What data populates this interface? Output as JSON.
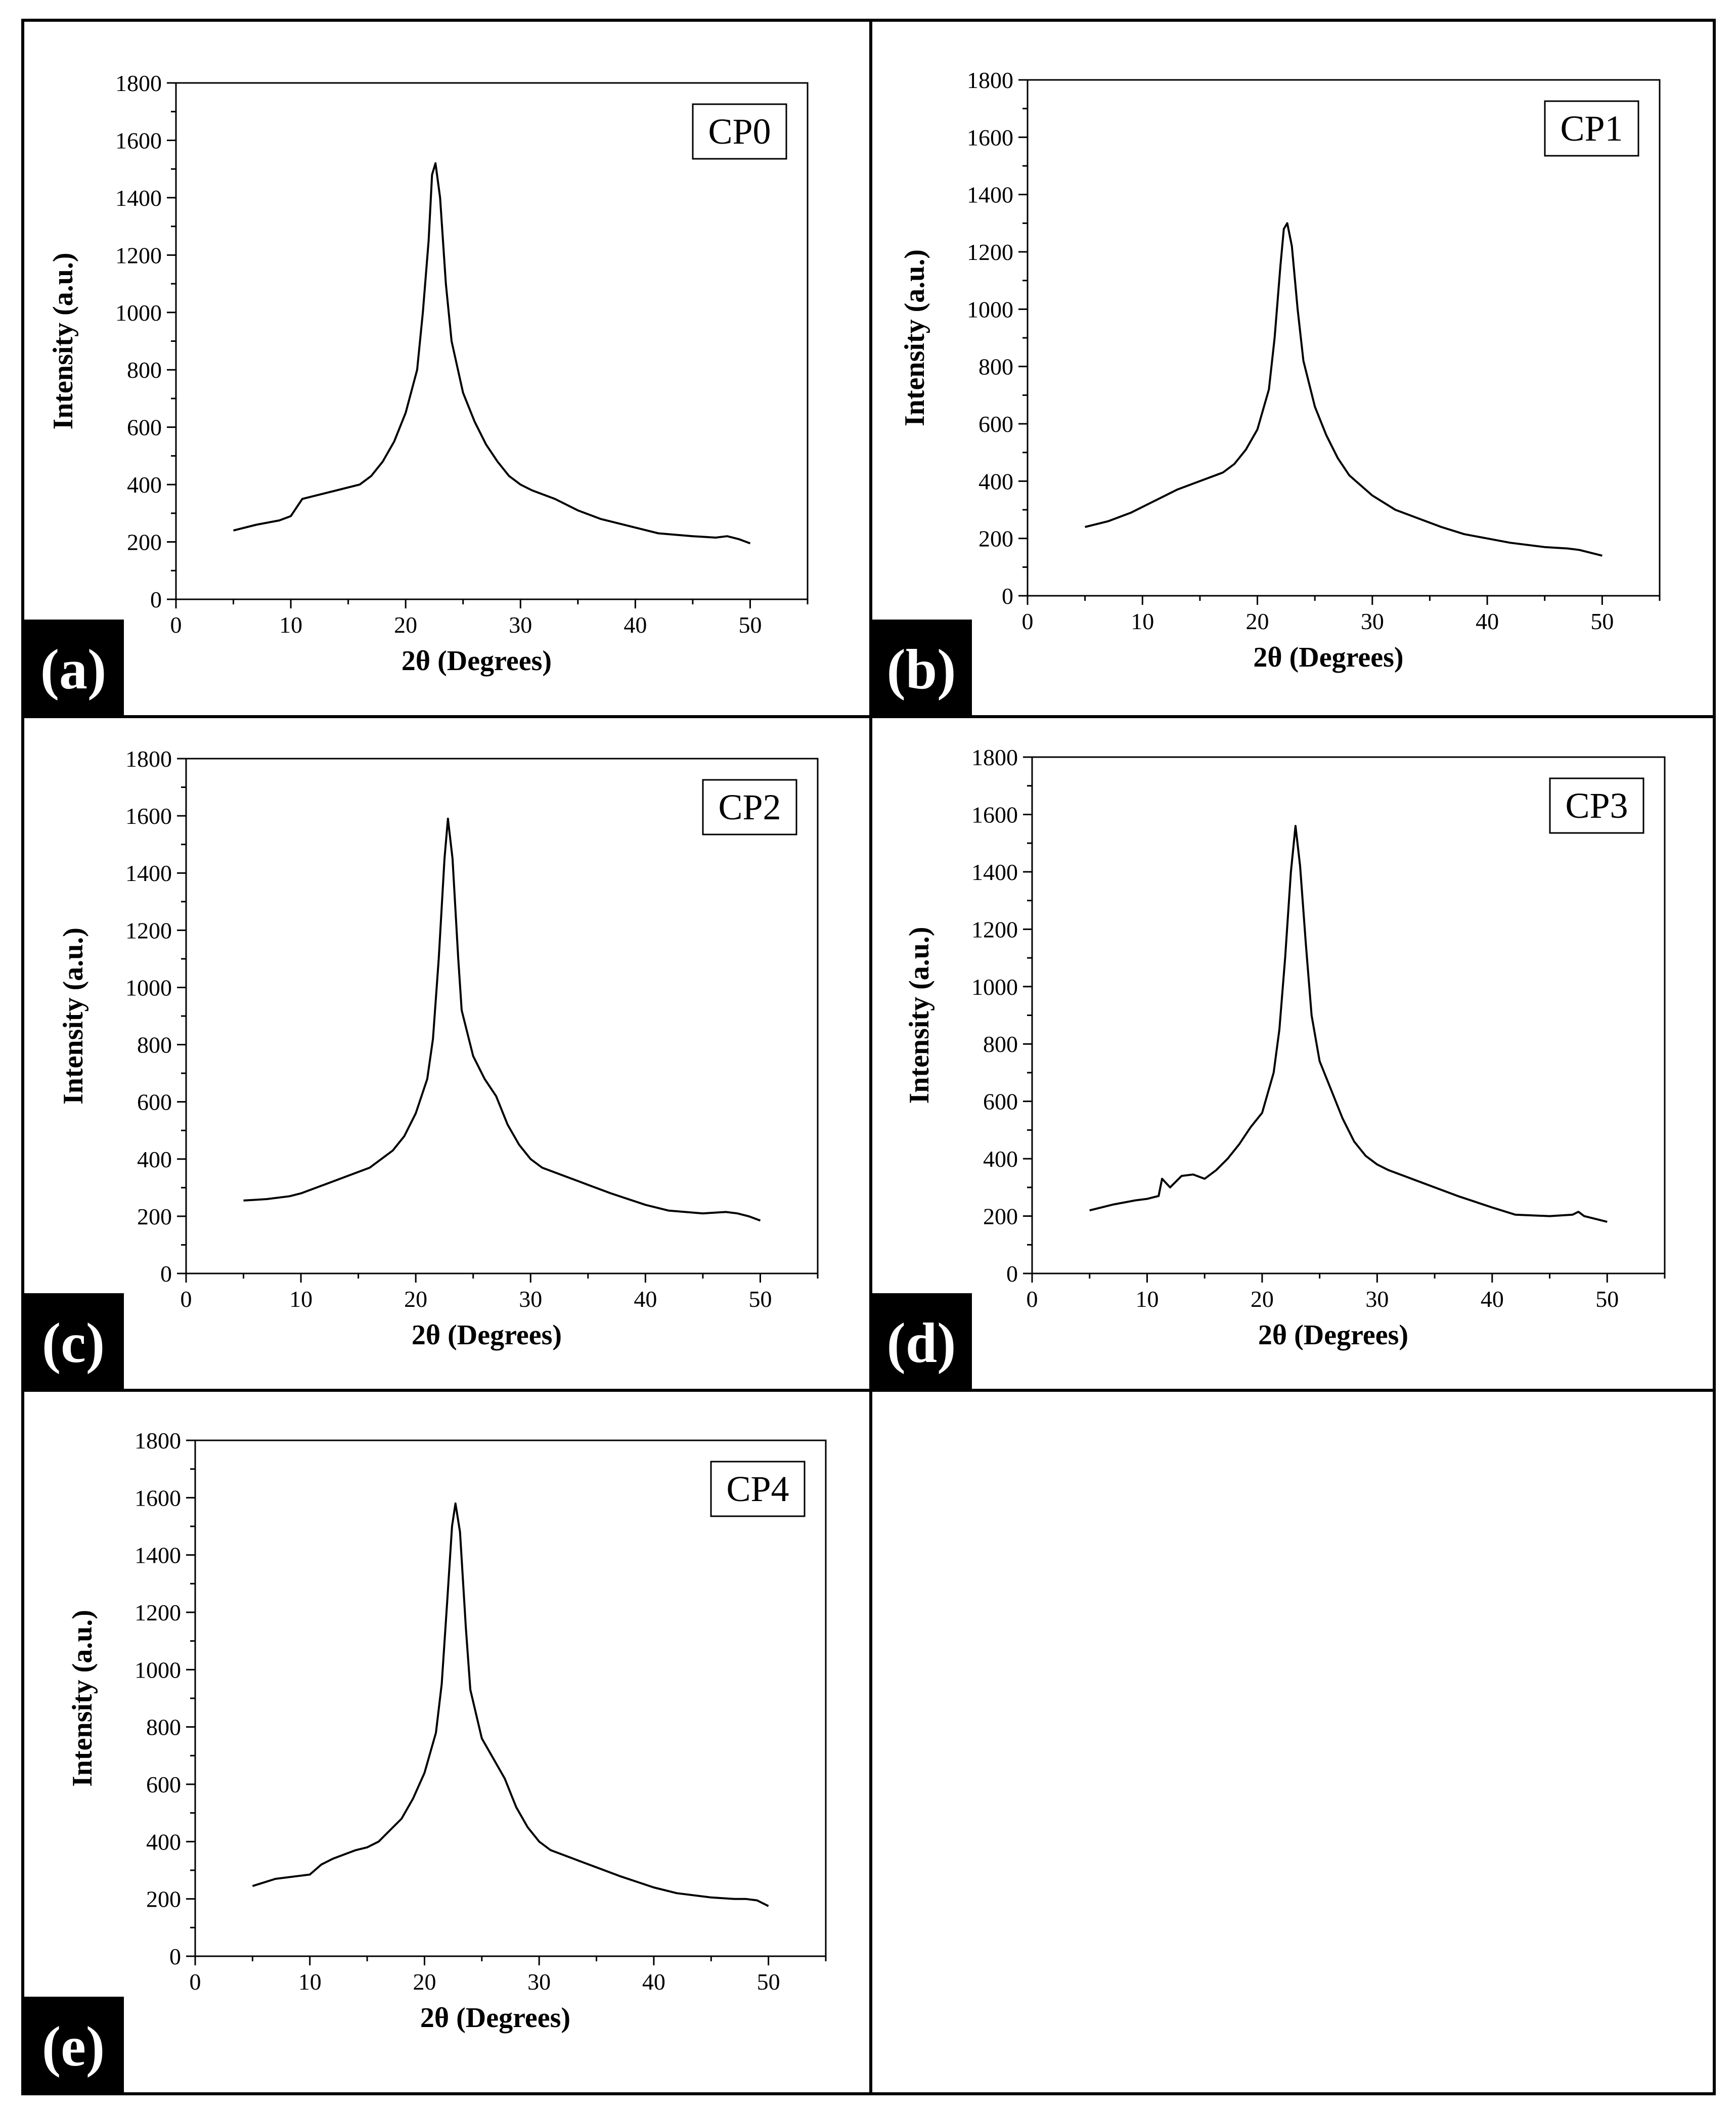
{
  "figure": {
    "panels": [
      {
        "letter": "(a)",
        "sample": "CP0"
      },
      {
        "letter": "(b)",
        "sample": "CP1"
      },
      {
        "letter": "(c)",
        "sample": "CP2"
      },
      {
        "letter": "(d)",
        "sample": "CP3"
      },
      {
        "letter": "(e)",
        "sample": "CP4"
      }
    ]
  },
  "chart_data": [
    {
      "type": "line",
      "title": "CP0",
      "xlabel": "2θ (Degrees)",
      "ylabel": "Intensity (a.u.)",
      "xlim": [
        0,
        55
      ],
      "ylim": [
        0,
        1800
      ],
      "xticks": [
        0,
        10,
        20,
        30,
        40,
        50
      ],
      "yticks": [
        0,
        200,
        400,
        600,
        800,
        1000,
        1200,
        1400,
        1600,
        1800
      ],
      "grid": false,
      "series": [
        {
          "name": "CP0",
          "x": [
            5,
            7,
            9,
            10,
            11,
            12,
            14,
            16,
            17,
            18,
            19,
            20,
            21,
            21.5,
            22,
            22.3,
            22.6,
            23,
            23.5,
            24,
            25,
            26,
            27,
            28,
            29,
            30,
            31,
            33,
            35,
            37,
            40,
            42,
            45,
            47,
            48,
            49,
            50
          ],
          "y": [
            240,
            260,
            275,
            290,
            350,
            360,
            380,
            400,
            430,
            480,
            550,
            650,
            800,
            1000,
            1250,
            1480,
            1520,
            1400,
            1100,
            900,
            720,
            620,
            540,
            480,
            430,
            400,
            380,
            350,
            310,
            280,
            250,
            230,
            220,
            215,
            220,
            210,
            195
          ]
        }
      ]
    },
    {
      "type": "line",
      "title": "CP1",
      "xlabel": "2θ (Degrees)",
      "ylabel": "Intensity (a.u.)",
      "xlim": [
        0,
        55
      ],
      "ylim": [
        0,
        1800
      ],
      "xticks": [
        0,
        10,
        20,
        30,
        40,
        50
      ],
      "yticks": [
        0,
        200,
        400,
        600,
        800,
        1000,
        1200,
        1400,
        1600,
        1800
      ],
      "grid": false,
      "series": [
        {
          "name": "CP1",
          "x": [
            5,
            7,
            9,
            11,
            13,
            15,
            17,
            18,
            19,
            20,
            21,
            21.5,
            22,
            22.3,
            22.6,
            23,
            23.5,
            24,
            25,
            26,
            27,
            28,
            30,
            32,
            34,
            36,
            38,
            40,
            42,
            45,
            47,
            48,
            50
          ],
          "y": [
            240,
            260,
            290,
            330,
            370,
            400,
            430,
            460,
            510,
            580,
            720,
            900,
            1150,
            1280,
            1300,
            1220,
            1000,
            820,
            660,
            560,
            480,
            420,
            350,
            300,
            270,
            240,
            215,
            200,
            185,
            170,
            165,
            160,
            140
          ]
        }
      ]
    },
    {
      "type": "line",
      "title": "CP2",
      "xlabel": "2θ (Degrees)",
      "ylabel": "Intensity (a.u.)",
      "xlim": [
        0,
        55
      ],
      "ylim": [
        0,
        1800
      ],
      "xticks": [
        0,
        10,
        20,
        30,
        40,
        50
      ],
      "yticks": [
        0,
        200,
        400,
        600,
        800,
        1000,
        1200,
        1400,
        1600,
        1800
      ],
      "grid": false,
      "series": [
        {
          "name": "CP2",
          "x": [
            5,
            7,
            9,
            10,
            12,
            14,
            16,
            18,
            19,
            20,
            21,
            21.5,
            22,
            22.5,
            22.8,
            23.2,
            23.7,
            24,
            25,
            26,
            27,
            28,
            29,
            30,
            31,
            33,
            35,
            37,
            40,
            42,
            45,
            47,
            48,
            49,
            50
          ],
          "y": [
            255,
            260,
            270,
            280,
            310,
            340,
            370,
            430,
            480,
            560,
            680,
            820,
            1100,
            1450,
            1590,
            1450,
            1100,
            920,
            760,
            680,
            620,
            520,
            450,
            400,
            370,
            340,
            310,
            280,
            240,
            220,
            210,
            215,
            210,
            200,
            185
          ]
        }
      ]
    },
    {
      "type": "line",
      "title": "CP3",
      "xlabel": "2θ (Degrees)",
      "ylabel": "Intensity (a.u.)",
      "xlim": [
        0,
        55
      ],
      "ylim": [
        0,
        1800
      ],
      "xticks": [
        0,
        10,
        20,
        30,
        40,
        50
      ],
      "yticks": [
        0,
        200,
        400,
        600,
        800,
        1000,
        1200,
        1400,
        1600,
        1800
      ],
      "grid": false,
      "series": [
        {
          "name": "CP3",
          "x": [
            5,
            7,
            9,
            10,
            11,
            11.3,
            12,
            13,
            14,
            15,
            16,
            17,
            18,
            19,
            20,
            21,
            21.5,
            22,
            22.5,
            22.9,
            23.3,
            23.8,
            24.3,
            25,
            26,
            27,
            28,
            29,
            30,
            31,
            33,
            35,
            37,
            40,
            42,
            45,
            47,
            47.5,
            48,
            49,
            50
          ],
          "y": [
            220,
            240,
            255,
            260,
            270,
            330,
            300,
            340,
            345,
            330,
            360,
            400,
            450,
            510,
            560,
            700,
            850,
            1100,
            1400,
            1560,
            1420,
            1150,
            900,
            740,
            640,
            540,
            460,
            410,
            380,
            360,
            330,
            300,
            270,
            230,
            205,
            200,
            205,
            215,
            200,
            190,
            180
          ]
        }
      ]
    },
    {
      "type": "line",
      "title": "CP4",
      "xlabel": "2θ (Degrees)",
      "ylabel": "Intensity (a.u.)",
      "xlim": [
        0,
        55
      ],
      "ylim": [
        0,
        1800
      ],
      "xticks": [
        0,
        10,
        20,
        30,
        40,
        50
      ],
      "yticks": [
        0,
        200,
        400,
        600,
        800,
        1000,
        1200,
        1400,
        1600,
        1800
      ],
      "grid": false,
      "series": [
        {
          "name": "CP4",
          "x": [
            5,
            7,
            9,
            10,
            11,
            12,
            14,
            15,
            16,
            18,
            19,
            20,
            21,
            21.5,
            22,
            22.4,
            22.7,
            23.1,
            23.6,
            24,
            25,
            26,
            27,
            28,
            29,
            30,
            31,
            33,
            35,
            37,
            40,
            42,
            45,
            47,
            48,
            49,
            50
          ],
          "y": [
            245,
            270,
            280,
            285,
            320,
            340,
            370,
            380,
            400,
            480,
            550,
            640,
            780,
            950,
            1250,
            1500,
            1580,
            1480,
            1150,
            930,
            760,
            690,
            620,
            520,
            450,
            400,
            370,
            340,
            310,
            280,
            240,
            220,
            205,
            200,
            200,
            195,
            175
          ]
        }
      ]
    }
  ]
}
